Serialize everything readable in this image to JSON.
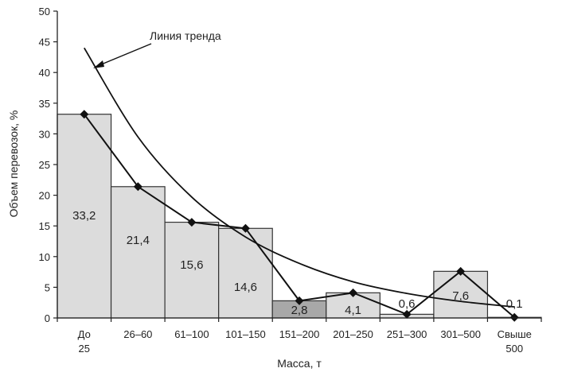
{
  "chart_data": {
    "type": "bar",
    "title": "",
    "xlabel": "Масса, т",
    "ylabel": "Объем перевозок, %",
    "ylim": [
      0,
      50
    ],
    "yticks": [
      0,
      5,
      10,
      15,
      20,
      25,
      30,
      35,
      40,
      45,
      50
    ],
    "grid": false,
    "categories": [
      "До 25",
      "26–60",
      "61–100",
      "101–150",
      "151–200",
      "201–250",
      "251–300",
      "301–500",
      "Свыше 500"
    ],
    "values": [
      33.2,
      21.4,
      15.6,
      14.6,
      2.8,
      4.1,
      0.6,
      7.6,
      0.1
    ],
    "data_labels": [
      "33,2",
      "21,4",
      "15,6",
      "14,6",
      "2,8",
      "4,1",
      "0,6",
      "7,6",
      "0,1"
    ],
    "highlight_category": "151–200",
    "colors": {
      "bar": "#dcdcdc",
      "bar_highlight": "#a8a8a8",
      "line": "#111111"
    },
    "series": [
      {
        "type": "bar",
        "values": [
          33.2,
          21.4,
          15.6,
          14.6,
          2.8,
          4.1,
          0.6,
          7.6,
          0.1
        ]
      },
      {
        "type": "line",
        "marker": "diamond",
        "values": [
          33.2,
          21.4,
          15.6,
          14.6,
          2.8,
          4.1,
          0.6,
          7.6,
          0.1
        ]
      },
      {
        "type": "trendline",
        "name": "Линия тренда",
        "fit": "exponential",
        "values": [
          44.0,
          29.5,
          19.7,
          13.2,
          8.9,
          5.9,
          4.0,
          2.7,
          1.8
        ]
      }
    ],
    "annotations": [
      {
        "text": "Линия тренда",
        "points_to": "trendline"
      }
    ]
  }
}
